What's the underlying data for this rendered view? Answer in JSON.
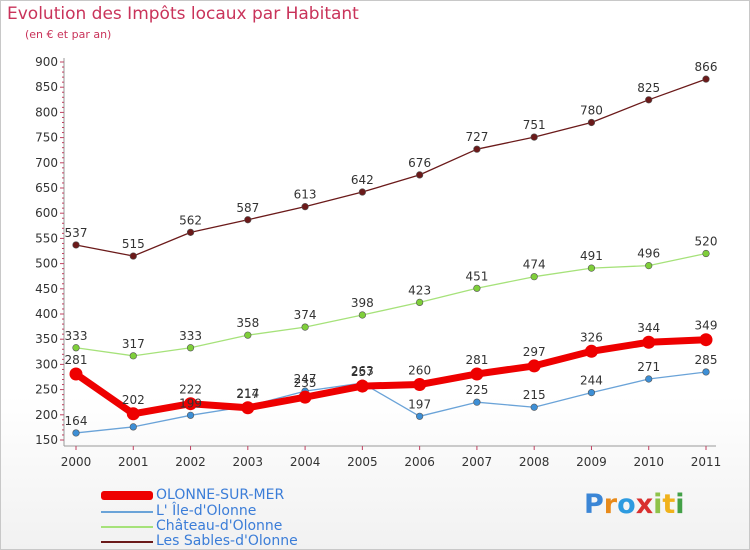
{
  "title": "Evolution des Impôts locaux par Habitant",
  "subtitle": "(en € et par an)",
  "chart_data": {
    "type": "line",
    "x": [
      "2000",
      "2001",
      "2002",
      "2003",
      "2004",
      "2005",
      "2006",
      "2007",
      "2008",
      "2009",
      "2010",
      "2011"
    ],
    "ylim": [
      150,
      900
    ],
    "yticks": [
      150,
      200,
      250,
      300,
      350,
      400,
      450,
      500,
      550,
      600,
      650,
      700,
      750,
      800,
      850,
      900
    ],
    "grid": false,
    "legend_position": "bottom-left",
    "series": [
      {
        "name": "Les Sables-d'Olonne",
        "color": "#6b1a1a",
        "point_color": "#6b1a1a",
        "values": [
          537,
          515,
          562,
          587,
          613,
          642,
          676,
          727,
          751,
          780,
          825,
          866
        ]
      },
      {
        "name": "Château-d'Olonne",
        "color": "#a6e27a",
        "point_color": "#7fcf3a",
        "values": [
          333,
          317,
          333,
          358,
          374,
          398,
          423,
          451,
          474,
          491,
          496,
          520
        ]
      },
      {
        "name": "L' Île-d'Olonne",
        "color": "#6aa3d8",
        "point_color": "#3d8fd6",
        "values": [
          164,
          176,
          199,
          217,
          247,
          263,
          197,
          225,
          215,
          244,
          271,
          285
        ]
      },
      {
        "name": "OLONNE-SUR-MER",
        "color": "#ee0000",
        "point_color": "#ee0000",
        "values": [
          281,
          202,
          222,
          214,
          235,
          257,
          260,
          281,
          297,
          326,
          344,
          349
        ]
      }
    ],
    "data_labels": {
      "Les Sables-d'Olonne": [
        "537",
        "515",
        "562",
        "587",
        "613",
        "642",
        "676",
        "727",
        "751",
        "780",
        "825",
        "866"
      ],
      "Château-d'Olonne": [
        "333",
        "317",
        "333",
        "358",
        "374",
        "398",
        "423",
        "451",
        "474",
        "491",
        "496",
        "520"
      ],
      "L' Île-d'Olonne": [
        "164",
        "",
        "199",
        "217",
        "247",
        "263",
        "197",
        "225",
        "215",
        "244",
        "271",
        "285"
      ],
      "OLONNE-SUR-MER": [
        "281",
        "202",
        "222",
        "214",
        "235",
        "257",
        "260",
        "281",
        "297",
        "326",
        "344",
        "349"
      ]
    }
  },
  "legend": {
    "items": [
      {
        "label": "OLONNE-SUR-MER",
        "color": "#ee0000"
      },
      {
        "label": "L' Île-d'Olonne",
        "color": "#6aa3d8"
      },
      {
        "label": "Château-d'Olonne",
        "color": "#a6e27a"
      },
      {
        "label": "Les Sables-d'Olonne",
        "color": "#6b1a1a"
      }
    ]
  },
  "logo": {
    "letters": [
      "P",
      "r",
      "o",
      "x",
      "i",
      "t",
      "i"
    ],
    "colors": [
      "#3b86d6",
      "#e88a1a",
      "#2e9be0",
      "#d9302f",
      "#8fc34a",
      "#f0b21c",
      "#43a047"
    ]
  }
}
